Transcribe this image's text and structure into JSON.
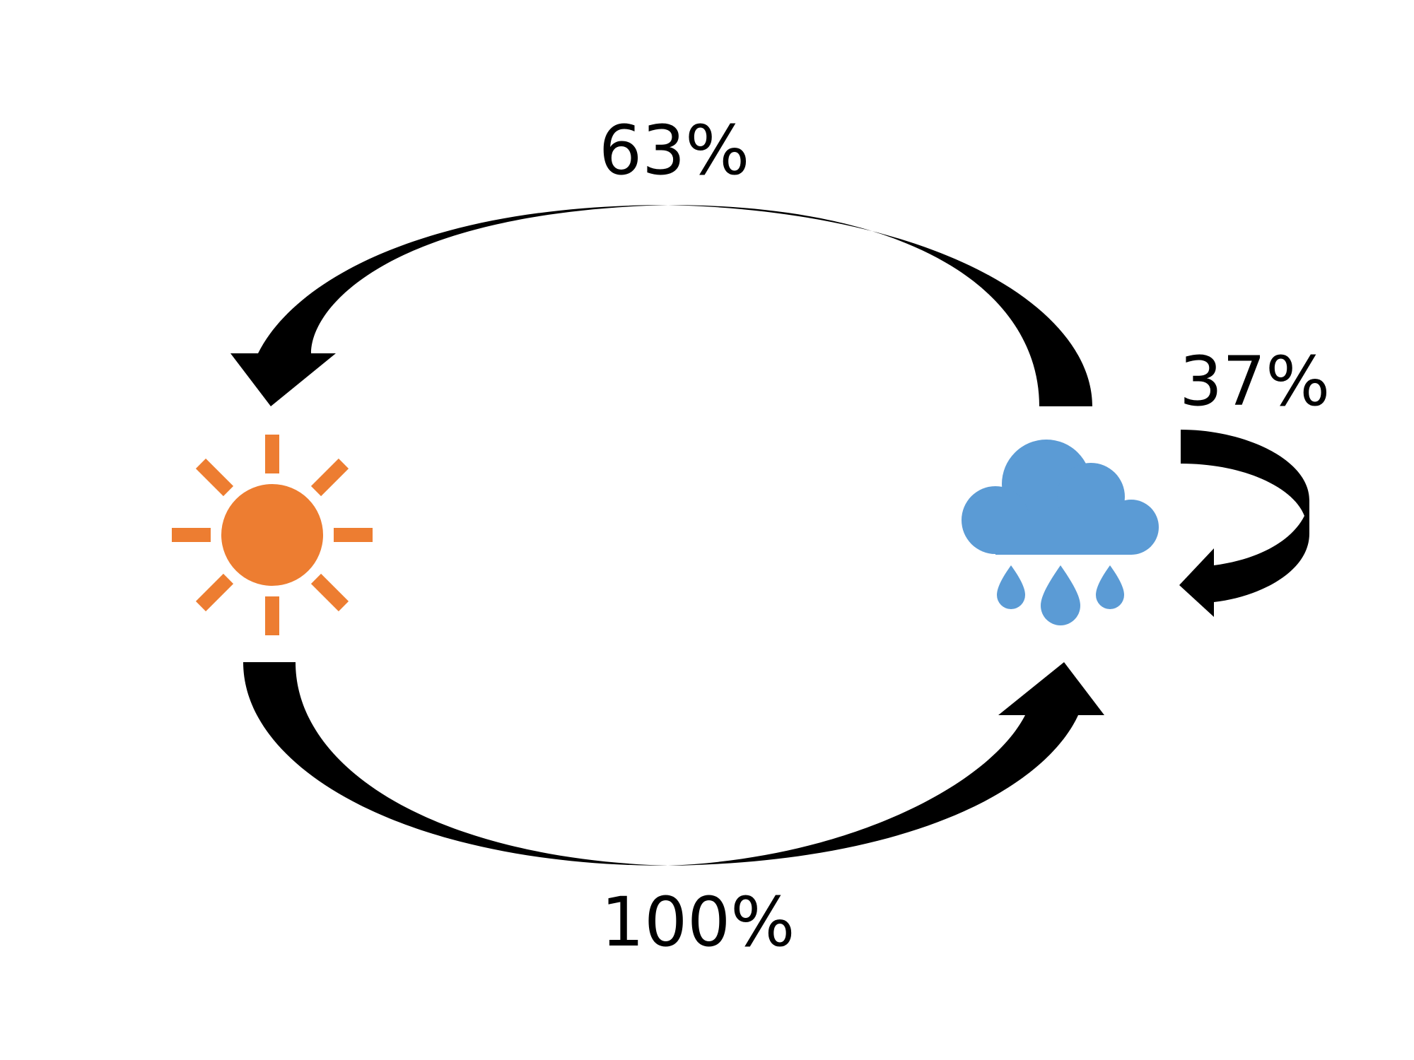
{
  "diagram": {
    "nodes": {
      "sunny": {
        "icon": "sun-icon",
        "color": "#ED7D31"
      },
      "rainy": {
        "icon": "rain-cloud-icon",
        "color": "#5B9BD5"
      }
    },
    "transitions": {
      "rainy_to_sunny": {
        "label": "63%",
        "value": 0.63
      },
      "rainy_to_rainy": {
        "label": "37%",
        "value": 0.37
      },
      "sunny_to_rainy": {
        "label": "100%",
        "value": 1.0
      }
    },
    "arrow_color": "#000000"
  }
}
